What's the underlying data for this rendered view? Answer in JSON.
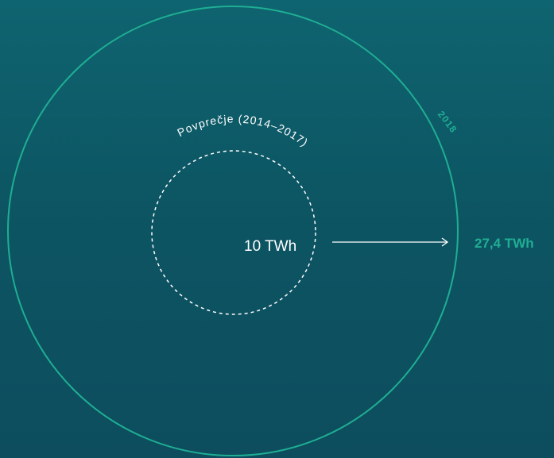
{
  "outer_circle": {
    "label": "2018",
    "value_label": "27,4 TWh",
    "value": 27.4,
    "unit": "TWh",
    "color": "#1fae93"
  },
  "inner_circle": {
    "label": "Povprečje (2014–2017)",
    "value_label": "10 TWh",
    "value": 10,
    "unit": "TWh",
    "color": "#ffffff"
  },
  "arrow": {
    "color": "#ffffff"
  }
}
